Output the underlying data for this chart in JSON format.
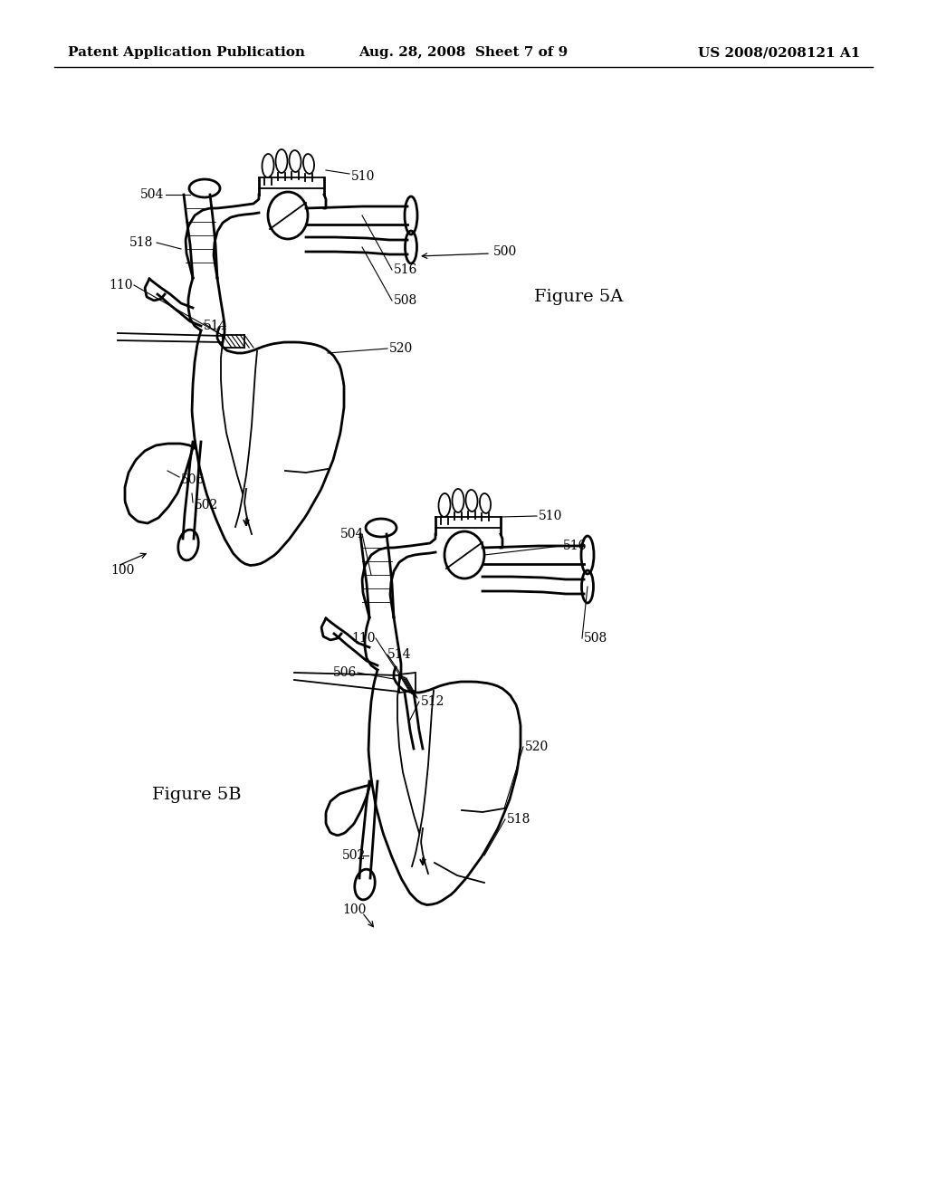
{
  "bg_color": "#ffffff",
  "line_color": "#000000",
  "header_left": "Patent Application Publication",
  "header_mid": "Aug. 28, 2008  Sheet 7 of 9",
  "header_right": "US 2008/0208121 A1",
  "fig5a_label": "Figure 5A",
  "fig5b_label": "Figure 5B",
  "header_fontsize": 11,
  "label_fontsize": 10,
  "fig_label_fontsize": 14,
  "lw_main": 2.0,
  "lw_thin": 1.3,
  "lw_hatch": 0.8
}
